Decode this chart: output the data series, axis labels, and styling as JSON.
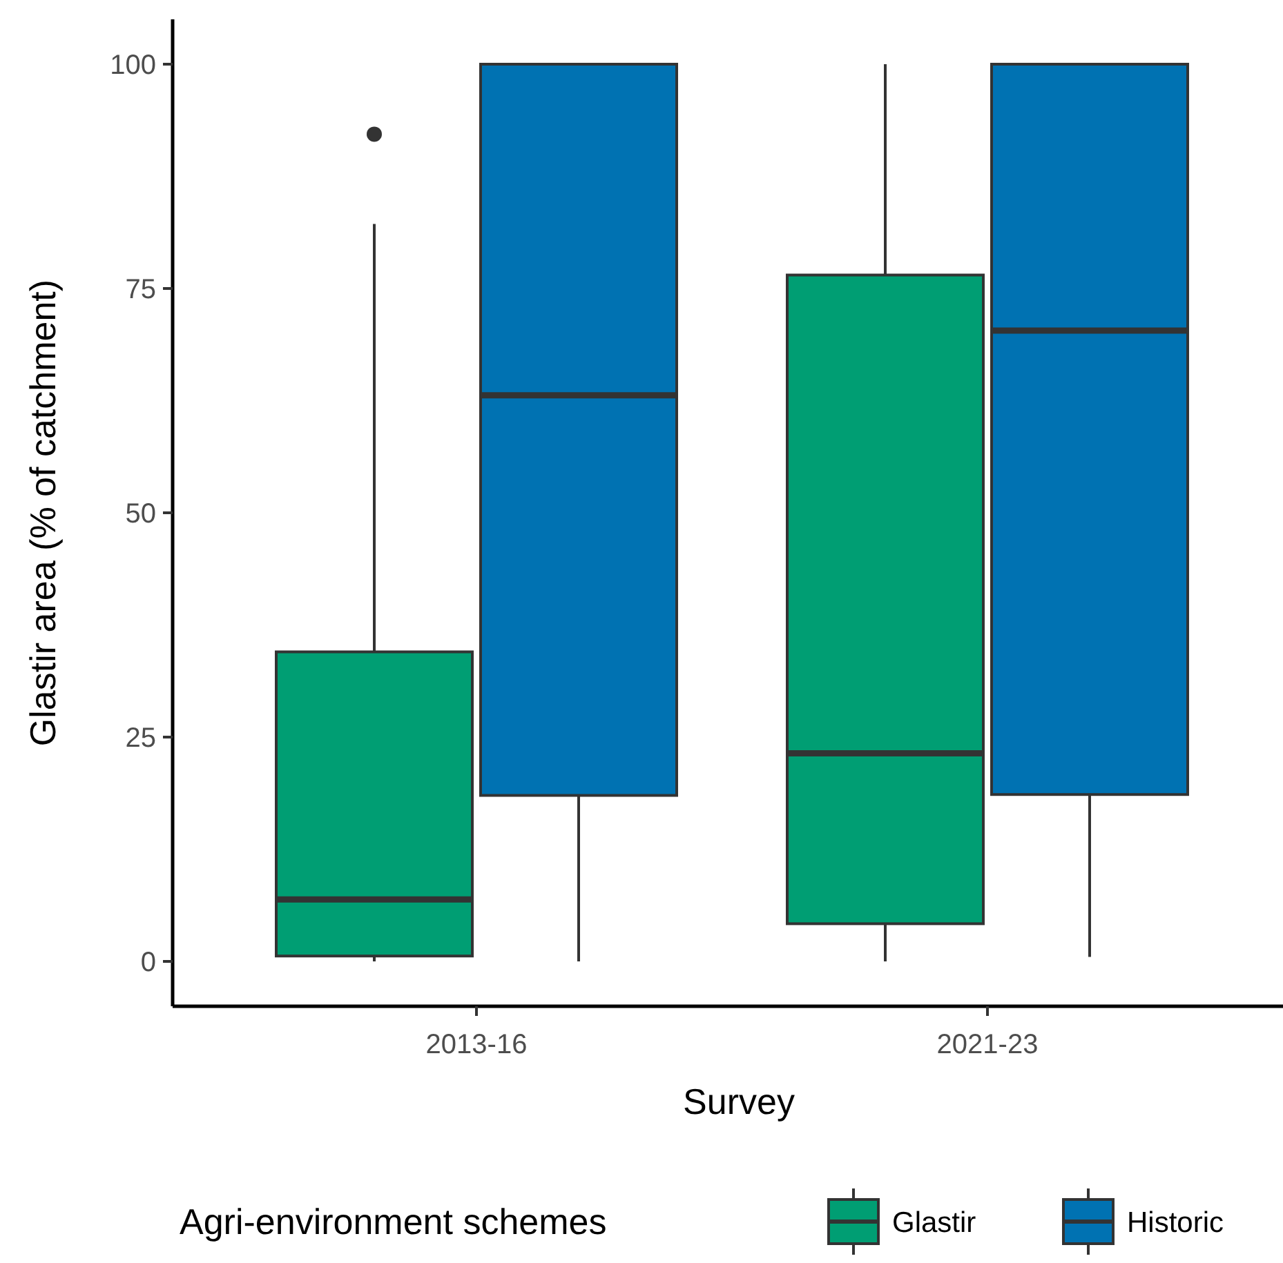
{
  "chart_data": {
    "type": "box",
    "xlabel": "Survey",
    "ylabel": "Glastir area (% of catchment)",
    "legend_title": "Agri-environment schemes",
    "categories": [
      "2013-16",
      "2021-23"
    ],
    "ylim": [
      -5,
      105
    ],
    "yticks": [
      0,
      25,
      50,
      75,
      100
    ],
    "grid": false,
    "legend": "bottom",
    "series": [
      {
        "name": "Glastir",
        "color": "#009e73",
        "boxes": [
          {
            "low": 0,
            "q1": 0.6,
            "median": 6.9,
            "q3": 34.5,
            "high": 82.2,
            "outliers": [
              92.2
            ]
          },
          {
            "low": 0,
            "q1": 4.2,
            "median": 23.2,
            "q3": 76.5,
            "high": 100
          }
        ]
      },
      {
        "name": "Historic",
        "color": "#0072b2",
        "boxes": [
          {
            "low": 0,
            "q1": 18.5,
            "median": 63.1,
            "q3": 100,
            "high": 100
          },
          {
            "low": 0.5,
            "q1": 18.6,
            "median": 70.3,
            "q3": 100,
            "high": 100
          }
        ]
      }
    ]
  }
}
